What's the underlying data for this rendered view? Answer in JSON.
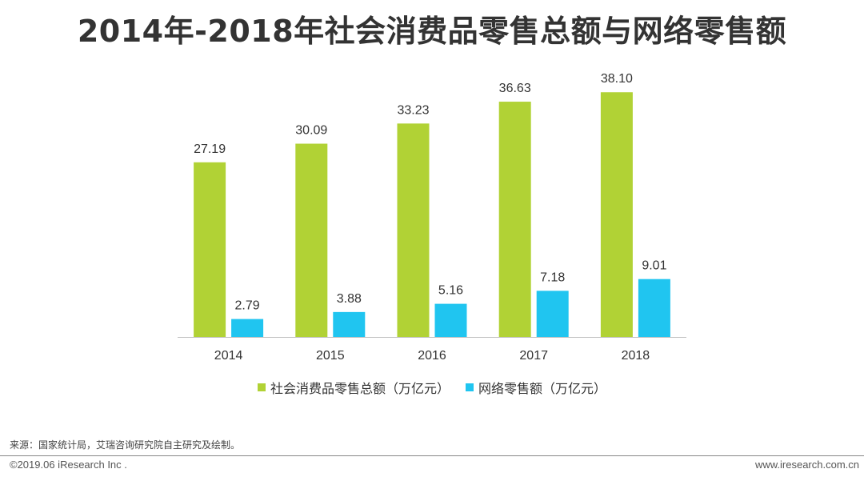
{
  "page": {
    "title": "2014年-2018年社会消费品零售总额与网络零售额",
    "source": "来源：国家统计局，艾瑞咨询研究院自主研究及绘制。",
    "copyright": "©2019.06 iResearch Inc .",
    "website": "www.iresearch.com.cn"
  },
  "colors": {
    "series1": "#b1d235",
    "series2": "#20c5f0",
    "axis": "#bfbfbf"
  },
  "chart_data": {
    "type": "bar",
    "title": "2014年-2018年社会消费品零售总额与网络零售额",
    "categories": [
      "2014",
      "2015",
      "2016",
      "2017",
      "2018"
    ],
    "series": [
      {
        "name": "社会消费品零售总额（万亿元）",
        "values": [
          27.19,
          30.09,
          33.23,
          36.63,
          38.1
        ],
        "labels": [
          "27.19",
          "30.09",
          "33.23",
          "36.63",
          "38.10"
        ]
      },
      {
        "name": "网络零售额（万亿元）",
        "values": [
          2.79,
          3.88,
          5.16,
          7.18,
          9.01
        ],
        "labels": [
          "2.79",
          "3.88",
          "5.16",
          "7.18",
          "9.01"
        ]
      }
    ],
    "xlabel": "",
    "ylabel": "",
    "ylim": [
      0,
      40
    ],
    "grid": false,
    "legend_position": "bottom"
  }
}
